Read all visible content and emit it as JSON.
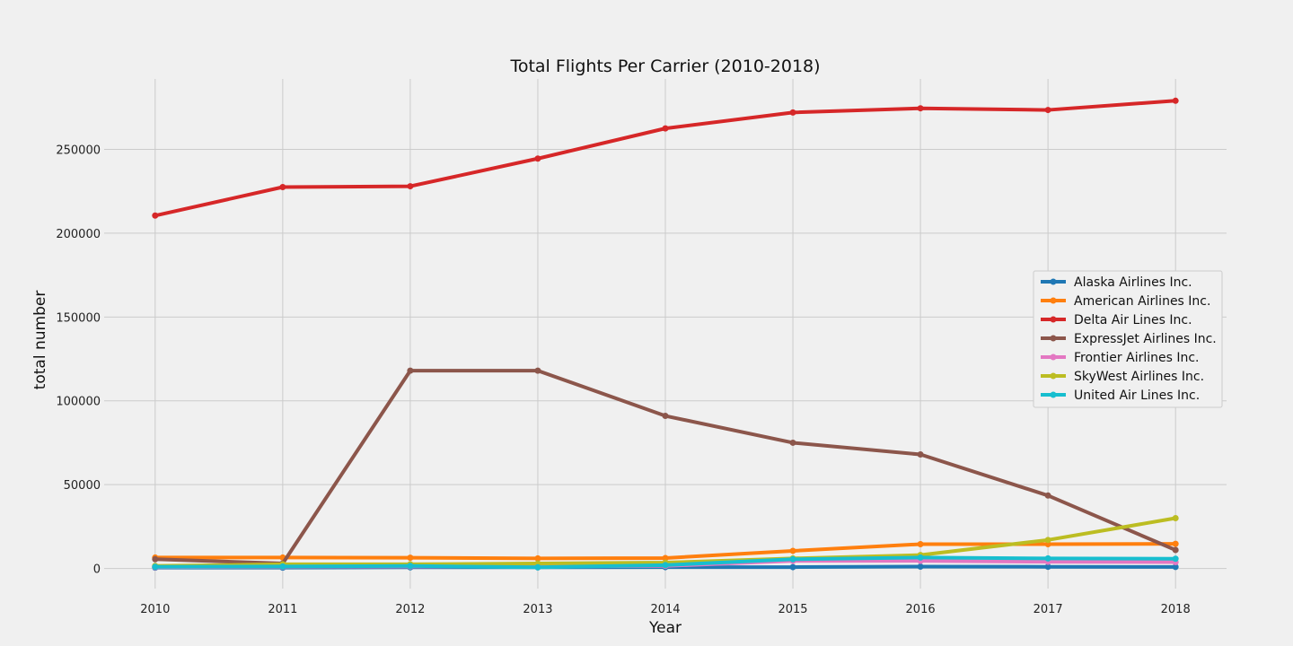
{
  "chart_data": {
    "type": "line",
    "title": "Total Flights Per Carrier (2010-2018)",
    "xlabel": "Year",
    "ylabel": "total number",
    "x": [
      2010,
      2011,
      2012,
      2013,
      2014,
      2015,
      2016,
      2017,
      2018
    ],
    "xlim": [
      2009.6,
      2018.4
    ],
    "ylim": [
      -12000,
      292000
    ],
    "yticks": [
      0,
      50000,
      100000,
      150000,
      200000,
      250000
    ],
    "grid": true,
    "legend_position": "center-right",
    "series": [
      {
        "name": "Alaska Airlines Inc.",
        "color": "#1f77b4",
        "values": [
          500,
          500,
          700,
          700,
          800,
          800,
          1100,
          1000,
          900
        ]
      },
      {
        "name": "American Airlines Inc.",
        "color": "#ff7f0e",
        "values": [
          6500,
          6500,
          6400,
          6000,
          6200,
          10500,
          14500,
          14500,
          14700
        ]
      },
      {
        "name": "Delta Air Lines Inc.",
        "color": "#d62728",
        "values": [
          210500,
          227500,
          228000,
          244500,
          262500,
          272000,
          274500,
          273500,
          279000
        ]
      },
      {
        "name": "ExpressJet Airlines Inc.",
        "color": "#8c564b",
        "values": [
          5500,
          3000,
          118000,
          118000,
          91000,
          75000,
          68000,
          43500,
          11000
        ]
      },
      {
        "name": "Frontier Airlines Inc.",
        "color": "#e377c2",
        "values": [
          800,
          1000,
          1200,
          1200,
          1500,
          4500,
          4500,
          4000,
          3800
        ]
      },
      {
        "name": "SkyWest Airlines Inc.",
        "color": "#bcbd22",
        "values": [
          1500,
          2500,
          2500,
          3000,
          3500,
          6000,
          8000,
          17000,
          30000
        ]
      },
      {
        "name": "United Air Lines Inc.",
        "color": "#17becf",
        "values": [
          1000,
          1200,
          1500,
          700,
          2000,
          5500,
          6500,
          6000,
          5800
        ]
      }
    ]
  }
}
